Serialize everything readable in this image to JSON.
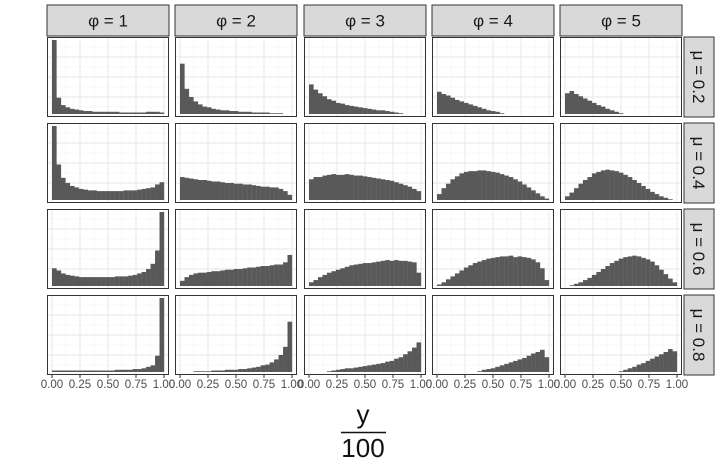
{
  "chart_data": {
    "type": "bar",
    "layout": "facet-grid histograms",
    "col_strips": [
      "φ = 1",
      "φ = 2",
      "φ = 3",
      "φ = 4",
      "φ = 5"
    ],
    "row_strips": [
      "μ = 0.2",
      "μ = 0.4",
      "μ = 0.6",
      "μ = 0.8"
    ],
    "x_ticks": [
      "0.00",
      "0.25",
      "0.50",
      "0.75",
      "1.00"
    ],
    "xlim": [
      0,
      1
    ],
    "xlabel_numerator": "y",
    "xlabel_denominator": "100",
    "ylabel": "",
    "y_axis_labels_shown": false,
    "grid": true,
    "bar_color": "#595959",
    "bins": 25,
    "rows": [
      {
        "mu": 0.2,
        "max": 100,
        "panels": [
          [
            100,
            22,
            12,
            9,
            7,
            6,
            5,
            4,
            4,
            3,
            3,
            3,
            3,
            3,
            3,
            2,
            2,
            2,
            2,
            2,
            2,
            3,
            3,
            3,
            2
          ],
          [
            68,
            34,
            23,
            17,
            13,
            10,
            9,
            7,
            6,
            5,
            5,
            4,
            4,
            3,
            3,
            3,
            2,
            2,
            2,
            2,
            1,
            1,
            1,
            0,
            0
          ],
          [
            40,
            33,
            28,
            24,
            20,
            18,
            15,
            14,
            12,
            11,
            10,
            9,
            8,
            7,
            6,
            5,
            5,
            4,
            3,
            2,
            1,
            0,
            0,
            0,
            0
          ],
          [
            30,
            27,
            25,
            22,
            19,
            17,
            15,
            13,
            11,
            9,
            7,
            5,
            4,
            3,
            1,
            0,
            0,
            0,
            0,
            0,
            0,
            0,
            0,
            0,
            0
          ],
          [
            28,
            31,
            27,
            24,
            21,
            18,
            15,
            12,
            10,
            7,
            5,
            3,
            1,
            0,
            0,
            0,
            0,
            0,
            0,
            0,
            0,
            0,
            0,
            0,
            0
          ]
        ]
      },
      {
        "mu": 0.4,
        "max": 100,
        "panels": [
          [
            100,
            48,
            30,
            23,
            19,
            17,
            15,
            14,
            13,
            13,
            12,
            12,
            12,
            12,
            12,
            12,
            13,
            13,
            13,
            14,
            15,
            16,
            17,
            21,
            24
          ],
          [
            31,
            30,
            29,
            28,
            27,
            27,
            26,
            25,
            25,
            24,
            23,
            23,
            22,
            22,
            21,
            21,
            20,
            19,
            18,
            18,
            17,
            17,
            15,
            12,
            7
          ],
          [
            28,
            31,
            31,
            33,
            34,
            35,
            34,
            34,
            35,
            34,
            33,
            33,
            32,
            31,
            30,
            29,
            28,
            27,
            26,
            24,
            22,
            20,
            18,
            15,
            12
          ],
          [
            8,
            16,
            22,
            28,
            32,
            36,
            38,
            39,
            39,
            40,
            40,
            39,
            38,
            37,
            35,
            33,
            31,
            28,
            25,
            21,
            17,
            13,
            9,
            5,
            2
          ],
          [
            5,
            10,
            16,
            22,
            27,
            31,
            36,
            38,
            40,
            41,
            40,
            39,
            37,
            34,
            31,
            27,
            23,
            19,
            15,
            11,
            8,
            5,
            3,
            1,
            0
          ]
        ]
      },
      {
        "mu": 0.6,
        "max": 100,
        "panels": [
          [
            24,
            21,
            17,
            15,
            14,
            13,
            12,
            12,
            12,
            12,
            12,
            12,
            12,
            12,
            13,
            13,
            13,
            14,
            15,
            17,
            19,
            23,
            30,
            48,
            100
          ],
          [
            7,
            12,
            15,
            17,
            18,
            18,
            19,
            20,
            20,
            21,
            22,
            22,
            23,
            23,
            24,
            25,
            25,
            26,
            27,
            27,
            28,
            29,
            29,
            32,
            42
          ],
          [
            5,
            8,
            12,
            15,
            18,
            20,
            22,
            24,
            26,
            28,
            29,
            30,
            31,
            31,
            32,
            33,
            34,
            35,
            34,
            35,
            34,
            34,
            33,
            32,
            18
          ],
          [
            2,
            5,
            9,
            13,
            17,
            21,
            25,
            28,
            31,
            33,
            35,
            37,
            38,
            39,
            40,
            40,
            41,
            39,
            40,
            39,
            38,
            36,
            32,
            24,
            8
          ],
          [
            0,
            1,
            3,
            5,
            8,
            11,
            15,
            19,
            23,
            27,
            31,
            34,
            37,
            39,
            40,
            41,
            40,
            38,
            36,
            33,
            28,
            22,
            16,
            10,
            5
          ]
        ]
      },
      {
        "mu": 0.8,
        "max": 100,
        "panels": [
          [
            2,
            2,
            2,
            2,
            2,
            2,
            2,
            2,
            2,
            2,
            2,
            2,
            2,
            2,
            3,
            3,
            3,
            3,
            4,
            4,
            5,
            7,
            9,
            22,
            100
          ],
          [
            0,
            0,
            0,
            1,
            1,
            1,
            1,
            2,
            2,
            2,
            3,
            3,
            3,
            4,
            4,
            5,
            6,
            7,
            9,
            10,
            13,
            17,
            23,
            34,
            68
          ],
          [
            0,
            0,
            0,
            0,
            1,
            2,
            3,
            4,
            5,
            5,
            6,
            7,
            8,
            9,
            10,
            11,
            12,
            14,
            15,
            18,
            20,
            24,
            28,
            33,
            40
          ],
          [
            0,
            0,
            0,
            0,
            0,
            0,
            0,
            0,
            0,
            1,
            3,
            4,
            5,
            7,
            9,
            11,
            13,
            15,
            17,
            19,
            22,
            25,
            27,
            30,
            20
          ],
          [
            0,
            0,
            0,
            0,
            0,
            0,
            0,
            0,
            0,
            0,
            0,
            0,
            1,
            3,
            5,
            7,
            10,
            12,
            15,
            18,
            21,
            24,
            27,
            31,
            28
          ]
        ]
      }
    ]
  }
}
